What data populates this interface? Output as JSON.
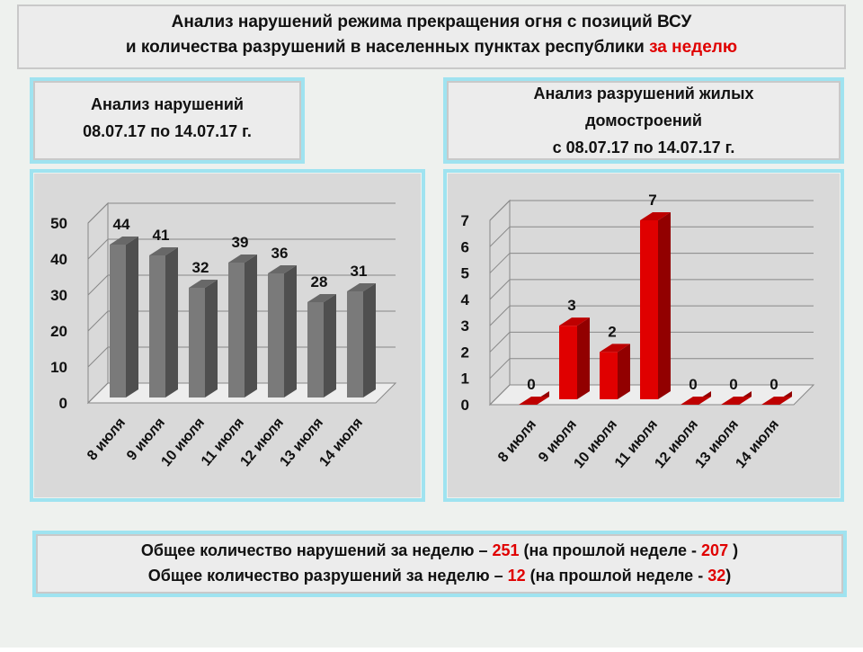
{
  "header": {
    "line1": "Анализ нарушений режима прекращения огня с позиций ВСУ",
    "line2": "и количества разрушений в населенных пунктах республики",
    "highlight": "за неделю"
  },
  "chart_data": [
    {
      "type": "bar",
      "title": [
        "Анализ нарушений",
        "08.07.17 по 14.07.17 г."
      ],
      "categories": [
        "8 июля",
        "9 июля",
        "10 июля",
        "11 июля",
        "12 июля",
        "13 июля",
        "14 июля"
      ],
      "values": [
        44,
        41,
        32,
        39,
        36,
        28,
        31
      ],
      "color": "#7a7a7a",
      "ylim": [
        0,
        50
      ],
      "yticks": [
        0,
        10,
        20,
        30,
        40,
        50
      ],
      "grid": true
    },
    {
      "type": "bar",
      "title": [
        "Анализ разрушений жилых",
        "домостроений",
        "с 08.07.17 по 14.07.17 г."
      ],
      "categories": [
        "8 июля",
        "9 июля",
        "10 июля",
        "11 июля",
        "12 июля",
        "13 июля",
        "14 июля"
      ],
      "values": [
        0,
        3,
        2,
        7,
        0,
        0,
        0
      ],
      "color": "#e00000",
      "ylim": [
        0,
        7
      ],
      "yticks": [
        0,
        1,
        2,
        3,
        4,
        5,
        6,
        7
      ],
      "grid": true
    }
  ],
  "summary": {
    "line1": [
      "Общее количество нарушений за неделю – ",
      "251",
      "  (на прошлой неделе - ",
      "207",
      " )"
    ],
    "line2": [
      "Общее количество разрушений за неделю – ",
      "12",
      " (на прошлой неделе - ",
      "32",
      ")"
    ]
  }
}
